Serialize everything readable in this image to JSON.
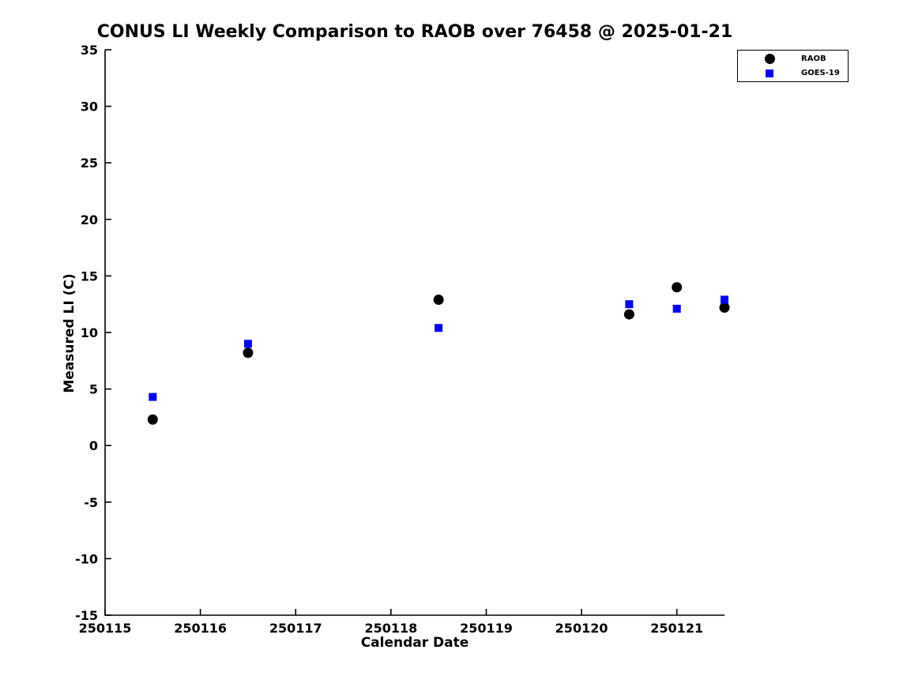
{
  "chart": {
    "title": "CONUS LI Weekly Comparison to RAOB over 76458 @ 2025-01-21",
    "xlabel": "Calendar Date",
    "ylabel": "Measured LI (C)"
  },
  "legend": {
    "entries": [
      {
        "label": "RAOB",
        "marker": "circle",
        "color": "#000000"
      },
      {
        "label": "GOES-19",
        "marker": "square",
        "color": "#0000ff"
      }
    ]
  },
  "chart_data": {
    "type": "scatter",
    "title": "CONUS LI Weekly Comparison to RAOB over 76458 @ 2025-01-21",
    "xlabel": "Calendar Date",
    "ylabel": "Measured LI (C)",
    "xlim": [
      250115,
      250121.5
    ],
    "ylim": [
      -15,
      35
    ],
    "x_ticks": [
      250115,
      250116,
      250117,
      250118,
      250119,
      250120,
      250121
    ],
    "x_tick_labels": [
      "250115",
      "250116",
      "250117",
      "250118",
      "250119",
      "250120",
      "250121"
    ],
    "y_ticks": [
      -15,
      -10,
      -5,
      0,
      5,
      10,
      15,
      20,
      25,
      30,
      35
    ],
    "y_tick_labels": [
      "-15",
      "-10",
      "-5",
      "0",
      "5",
      "10",
      "15",
      "20",
      "25",
      "30",
      "35"
    ],
    "grid": false,
    "legend_position": "upper right",
    "series": [
      {
        "name": "RAOB",
        "marker": "circle",
        "color": "#000000",
        "x": [
          250115.5,
          250116.5,
          250118.5,
          250120.5,
          250121.0,
          250121.5
        ],
        "y": [
          2.3,
          8.2,
          12.9,
          11.6,
          14.0,
          12.2
        ]
      },
      {
        "name": "GOES-19",
        "marker": "square",
        "color": "#0000ff",
        "x": [
          250115.5,
          250116.5,
          250118.5,
          250120.5,
          250121.0,
          250121.5
        ],
        "y": [
          4.3,
          9.0,
          10.4,
          12.5,
          12.1,
          12.9
        ]
      }
    ]
  }
}
